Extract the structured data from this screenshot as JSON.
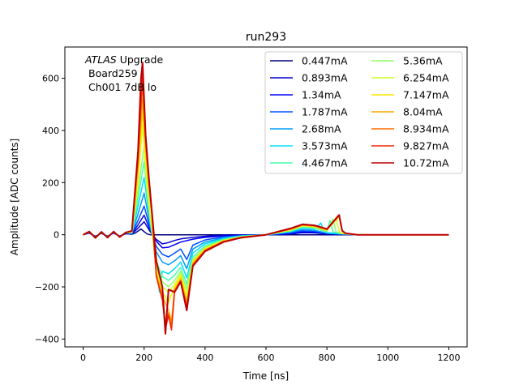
{
  "chart_data": {
    "type": "line",
    "title": "run293",
    "xlabel": "Time [ns]",
    "ylabel": "Amplitude [ADC counts]",
    "xlim": [
      -60,
      1260
    ],
    "ylim": [
      -430,
      720
    ],
    "xticks": [
      0,
      200,
      400,
      600,
      800,
      1000,
      1200
    ],
    "xtick_labels": [
      "0",
      "200",
      "400",
      "600",
      "800",
      "1000",
      "1200"
    ],
    "yticks": [
      -400,
      -200,
      0,
      200,
      400,
      600
    ],
    "ytick_labels": [
      "−400",
      "−200",
      "0",
      "200",
      "400",
      "600"
    ],
    "grid": false,
    "legend_placement": "top-right",
    "legend_columns": 2,
    "annotation": {
      "line1_italic": "ATLAS",
      "line1_rest": " Upgrade",
      "line2": "Board259",
      "line3": "Ch001 7dB lo"
    },
    "series": [
      {
        "name": "0.447mA",
        "color": "#00007f",
        "x": [
          0,
          20,
          40,
          60,
          80,
          100,
          120,
          140,
          160,
          170,
          180,
          190,
          200,
          210,
          220,
          240,
          260,
          300,
          400,
          600,
          700,
          800,
          1000,
          1200
        ],
        "y": [
          0,
          6,
          -6,
          5,
          -5,
          6,
          -5,
          4,
          2,
          6,
          14,
          22,
          12,
          3,
          0,
          0,
          0,
          0,
          0,
          0,
          0,
          0,
          0,
          0
        ]
      },
      {
        "name": "0.893mA",
        "color": "#0000c8",
        "x": [
          0,
          20,
          40,
          60,
          80,
          100,
          120,
          140,
          160,
          180,
          200,
          220,
          240,
          260,
          280,
          300,
          320,
          360,
          400,
          460,
          520,
          600,
          680,
          720,
          760,
          800,
          900,
          1000,
          1200
        ],
        "y": [
          0,
          8,
          -8,
          7,
          -7,
          8,
          -6,
          6,
          3,
          25,
          50,
          12,
          -18,
          -35,
          -30,
          -22,
          -16,
          -10,
          -6,
          -3,
          -1,
          0,
          3,
          8,
          7,
          3,
          0,
          0,
          0
        ]
      },
      {
        "name": "1.34mA",
        "color": "#0000ff",
        "x": [
          0,
          20,
          40,
          60,
          80,
          100,
          120,
          140,
          160,
          180,
          200,
          220,
          240,
          260,
          280,
          300,
          320,
          360,
          400,
          460,
          520,
          600,
          680,
          720,
          760,
          800,
          900,
          1000,
          1200
        ],
        "y": [
          0,
          9,
          -9,
          8,
          -8,
          9,
          -7,
          7,
          4,
          38,
          75,
          18,
          -25,
          -50,
          -48,
          -38,
          -28,
          -17,
          -10,
          -5,
          -2,
          0,
          5,
          11,
          10,
          4,
          0,
          0,
          0
        ]
      },
      {
        "name": "1.787mA",
        "color": "#0050ff",
        "x": [
          0,
          20,
          40,
          60,
          80,
          100,
          120,
          140,
          160,
          180,
          200,
          220,
          240,
          260,
          280,
          300,
          320,
          340,
          360,
          400,
          460,
          520,
          600,
          680,
          720,
          760,
          800,
          900,
          1000,
          1200
        ],
        "y": [
          0,
          10,
          -10,
          8,
          -8,
          10,
          -8,
          8,
          5,
          55,
          110,
          25,
          -45,
          -75,
          -85,
          -70,
          -55,
          -95,
          -40,
          -20,
          -9,
          -3,
          0,
          8,
          15,
          13,
          5,
          0,
          0,
          0
        ]
      },
      {
        "name": "2.68mA",
        "color": "#009cff",
        "x": [
          0,
          20,
          40,
          60,
          80,
          100,
          120,
          140,
          160,
          180,
          200,
          220,
          240,
          260,
          280,
          300,
          320,
          340,
          360,
          400,
          460,
          520,
          600,
          680,
          720,
          760,
          800,
          900,
          1000,
          1200
        ],
        "y": [
          0,
          10,
          -10,
          9,
          -9,
          10,
          -8,
          8,
          6,
          80,
          160,
          35,
          -65,
          -105,
          -115,
          -100,
          -80,
          -130,
          -55,
          -28,
          -12,
          -4,
          0,
          10,
          20,
          17,
          6,
          0,
          0,
          0
        ]
      },
      {
        "name": "3.573mA",
        "color": "#00e0fb",
        "x": [
          0,
          20,
          40,
          60,
          80,
          100,
          120,
          140,
          160,
          180,
          200,
          220,
          240,
          250,
          260,
          280,
          300,
          320,
          340,
          360,
          400,
          460,
          520,
          600,
          680,
          720,
          760,
          780,
          790,
          800,
          900,
          1000,
          1200
        ],
        "y": [
          0,
          10,
          -10,
          9,
          -9,
          10,
          -8,
          8,
          7,
          110,
          220,
          45,
          -85,
          -220,
          -140,
          -150,
          -130,
          -105,
          -165,
          -70,
          -35,
          -15,
          -5,
          0,
          12,
          26,
          22,
          45,
          15,
          8,
          0,
          0,
          0
        ]
      },
      {
        "name": "4.467mA",
        "color": "#4affad",
        "x": [
          0,
          20,
          40,
          60,
          80,
          100,
          120,
          140,
          160,
          180,
          200,
          220,
          240,
          260,
          280,
          300,
          320,
          340,
          360,
          400,
          460,
          520,
          600,
          680,
          720,
          760,
          800,
          810,
          820,
          900,
          1000,
          1200
        ],
        "y": [
          0,
          10,
          -10,
          9,
          -9,
          10,
          -8,
          8,
          8,
          140,
          280,
          55,
          -100,
          -160,
          -175,
          -155,
          -125,
          -190,
          -85,
          -42,
          -18,
          -6,
          0,
          14,
          29,
          25,
          10,
          55,
          10,
          0,
          0,
          0
        ]
      },
      {
        "name": "5.36mA",
        "color": "#91ff66",
        "x": [
          0,
          20,
          40,
          60,
          80,
          100,
          120,
          140,
          160,
          180,
          200,
          220,
          240,
          260,
          280,
          300,
          320,
          340,
          360,
          400,
          460,
          520,
          600,
          680,
          720,
          760,
          800,
          820,
          830,
          840,
          900,
          1000,
          1200
        ],
        "y": [
          0,
          11,
          -11,
          10,
          -10,
          11,
          -9,
          9,
          9,
          170,
          340,
          65,
          -115,
          -180,
          -200,
          -175,
          -140,
          -210,
          -95,
          -48,
          -20,
          -7,
          0,
          16,
          32,
          28,
          14,
          60,
          12,
          5,
          0,
          0,
          0
        ]
      },
      {
        "name": "6.254mA",
        "color": "#d0ff26",
        "x": [
          0,
          20,
          40,
          60,
          80,
          100,
          120,
          140,
          160,
          180,
          195,
          210,
          220,
          240,
          260,
          280,
          300,
          320,
          340,
          360,
          400,
          460,
          520,
          600,
          680,
          720,
          760,
          800,
          830,
          840,
          850,
          900,
          1000,
          1200
        ],
        "y": [
          0,
          11,
          -11,
          10,
          -10,
          11,
          -9,
          9,
          10,
          200,
          420,
          160,
          70,
          -130,
          -200,
          -220,
          -190,
          -150,
          -230,
          -100,
          -52,
          -22,
          -8,
          0,
          18,
          34,
          30,
          16,
          66,
          14,
          6,
          0,
          0,
          0
        ]
      },
      {
        "name": "7.147mA",
        "color": "#ffe600",
        "x": [
          0,
          20,
          40,
          60,
          80,
          100,
          120,
          140,
          160,
          180,
          195,
          205,
          215,
          225,
          240,
          260,
          280,
          300,
          320,
          340,
          360,
          400,
          460,
          520,
          600,
          680,
          720,
          760,
          800,
          840,
          850,
          860,
          900,
          1000,
          1200
        ],
        "y": [
          0,
          12,
          -12,
          11,
          -11,
          12,
          -9,
          9,
          11,
          230,
          470,
          300,
          180,
          70,
          -140,
          -220,
          -260,
          -200,
          -160,
          -250,
          -105,
          -55,
          -24,
          -9,
          0,
          20,
          36,
          32,
          18,
          70,
          14,
          6,
          0,
          0,
          0
        ]
      },
      {
        "name": "8.04mA",
        "color": "#ffa700",
        "x": [
          0,
          20,
          40,
          60,
          80,
          100,
          120,
          140,
          160,
          180,
          195,
          205,
          215,
          225,
          240,
          260,
          280,
          290,
          300,
          320,
          340,
          360,
          400,
          460,
          520,
          600,
          680,
          720,
          760,
          800,
          840,
          850,
          860,
          900,
          1000,
          1200
        ],
        "y": [
          0,
          12,
          -12,
          11,
          -11,
          12,
          -9,
          9,
          12,
          260,
          520,
          330,
          200,
          80,
          -150,
          -235,
          -290,
          -330,
          -210,
          -170,
          -260,
          -110,
          -58,
          -25,
          -9,
          0,
          21,
          37,
          33,
          19,
          72,
          15,
          6,
          0,
          0,
          0
        ]
      },
      {
        "name": "8.934mA",
        "color": "#ff6c00",
        "x": [
          0,
          20,
          40,
          60,
          80,
          100,
          120,
          140,
          160,
          180,
          195,
          205,
          215,
          225,
          240,
          260,
          270,
          280,
          290,
          300,
          320,
          340,
          360,
          400,
          460,
          520,
          600,
          680,
          720,
          760,
          800,
          840,
          850,
          860,
          900,
          1000,
          1200
        ],
        "y": [
          0,
          12,
          -12,
          11,
          -11,
          12,
          -9,
          9,
          13,
          280,
          580,
          350,
          210,
          85,
          -155,
          -245,
          -340,
          -300,
          -350,
          -215,
          -175,
          -270,
          -115,
          -60,
          -26,
          -10,
          0,
          22,
          38,
          34,
          20,
          74,
          15,
          6,
          0,
          0,
          0
        ]
      },
      {
        "name": "9.827mA",
        "color": "#f32500",
        "x": [
          0,
          20,
          40,
          60,
          80,
          100,
          120,
          140,
          160,
          180,
          195,
          205,
          215,
          225,
          240,
          260,
          270,
          280,
          290,
          300,
          320,
          340,
          360,
          400,
          460,
          520,
          600,
          680,
          720,
          760,
          800,
          840,
          850,
          860,
          900,
          1000,
          1200
        ],
        "y": [
          0,
          12,
          -12,
          11,
          -11,
          12,
          -9,
          9,
          14,
          300,
          620,
          370,
          220,
          90,
          -160,
          -250,
          -360,
          -310,
          -365,
          -220,
          -180,
          -280,
          -118,
          -62,
          -27,
          -10,
          0,
          23,
          39,
          35,
          21,
          75,
          16,
          6,
          0,
          0,
          0
        ]
      },
      {
        "name": "10.72mA",
        "color": "#bc0000",
        "x": [
          0,
          20,
          40,
          60,
          80,
          100,
          120,
          140,
          160,
          180,
          190,
          195,
          200,
          205,
          215,
          225,
          240,
          260,
          270,
          280,
          300,
          320,
          340,
          360,
          400,
          460,
          520,
          600,
          680,
          720,
          760,
          800,
          840,
          850,
          860,
          900,
          1000,
          1200
        ],
        "y": [
          0,
          12,
          -12,
          11,
          -11,
          12,
          -9,
          9,
          15,
          320,
          600,
          660,
          520,
          380,
          230,
          95,
          -100,
          -200,
          -380,
          -210,
          -220,
          -180,
          -290,
          -120,
          -64,
          -28,
          -11,
          0,
          24,
          40,
          36,
          22,
          76,
          16,
          6,
          0,
          0,
          0
        ]
      }
    ]
  }
}
